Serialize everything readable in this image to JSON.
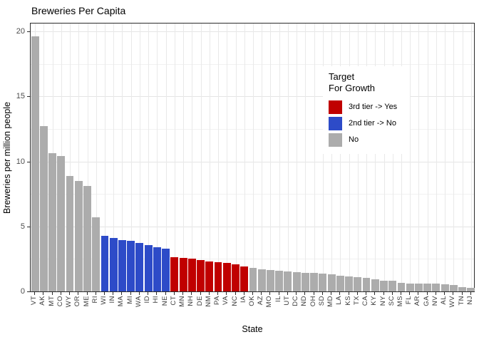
{
  "title": "Breweries Per Capita",
  "x_axis": {
    "label": "State"
  },
  "y_axis": {
    "label": "Breweries per million people",
    "ticks": [
      0,
      5,
      10,
      15,
      20
    ]
  },
  "legend": {
    "title_line1": "Target",
    "title_line2": "For Growth",
    "entries": [
      {
        "label": "3rd tier -> Yes",
        "key": "3rd",
        "color": "#c00000"
      },
      {
        "label": "2nd tier -> No",
        "key": "2nd",
        "color": "#2d4bc8"
      },
      {
        "label": "No",
        "key": "no",
        "color": "#acacac"
      }
    ]
  },
  "chart_data": {
    "type": "bar",
    "title": "Breweries Per Capita",
    "xlabel": "State",
    "ylabel": "Breweries per million people",
    "ylim": [
      0,
      20.7
    ],
    "yticks": [
      0,
      5,
      10,
      15,
      20
    ],
    "yticks_minor": [
      2.5,
      7.5,
      12.5,
      17.5
    ],
    "grid": true,
    "legend_position": "inside-top-right",
    "legend_title": "Target For Growth",
    "categories": [
      "VT",
      "AK",
      "MT",
      "CO",
      "WY",
      "OR",
      "ME",
      "RI",
      "WI",
      "IN",
      "MA",
      "MI",
      "WA",
      "ID",
      "HI",
      "NE",
      "CT",
      "MN",
      "NH",
      "DE",
      "NM",
      "PA",
      "VA",
      "NC",
      "IA",
      "OK",
      "AZ",
      "MO",
      "IL",
      "UT",
      "DC",
      "ND",
      "OH",
      "SD",
      "MD",
      "LA",
      "KS",
      "TX",
      "CA",
      "KY",
      "NY",
      "SC",
      "MS",
      "FL",
      "AR",
      "GA",
      "NV",
      "AL",
      "WV",
      "TN",
      "NJ"
    ],
    "values": [
      19.65,
      12.7,
      10.65,
      10.4,
      8.9,
      8.5,
      8.1,
      5.7,
      4.25,
      4.1,
      3.95,
      3.9,
      3.75,
      3.55,
      3.4,
      3.3,
      2.65,
      2.6,
      2.5,
      2.4,
      2.3,
      2.25,
      2.2,
      2.1,
      1.9,
      1.8,
      1.7,
      1.65,
      1.6,
      1.55,
      1.5,
      1.45,
      1.4,
      1.35,
      1.3,
      1.2,
      1.15,
      1.1,
      1.05,
      0.95,
      0.85,
      0.8,
      0.65,
      0.6,
      0.6,
      0.6,
      0.6,
      0.55,
      0.5,
      0.35,
      0.25
    ],
    "groups": [
      "no",
      "no",
      "no",
      "no",
      "no",
      "no",
      "no",
      "no",
      "2nd",
      "2nd",
      "2nd",
      "2nd",
      "2nd",
      "2nd",
      "2nd",
      "2nd",
      "3rd",
      "3rd",
      "3rd",
      "3rd",
      "3rd",
      "3rd",
      "3rd",
      "3rd",
      "3rd",
      "no",
      "no",
      "no",
      "no",
      "no",
      "no",
      "no",
      "no",
      "no",
      "no",
      "no",
      "no",
      "no",
      "no",
      "no",
      "no",
      "no",
      "no",
      "no",
      "no",
      "no",
      "no",
      "no",
      "no",
      "no",
      "no"
    ],
    "group_colors": {
      "3rd": "#c00000",
      "2nd": "#2d4bc8",
      "no": "#acacac"
    }
  }
}
